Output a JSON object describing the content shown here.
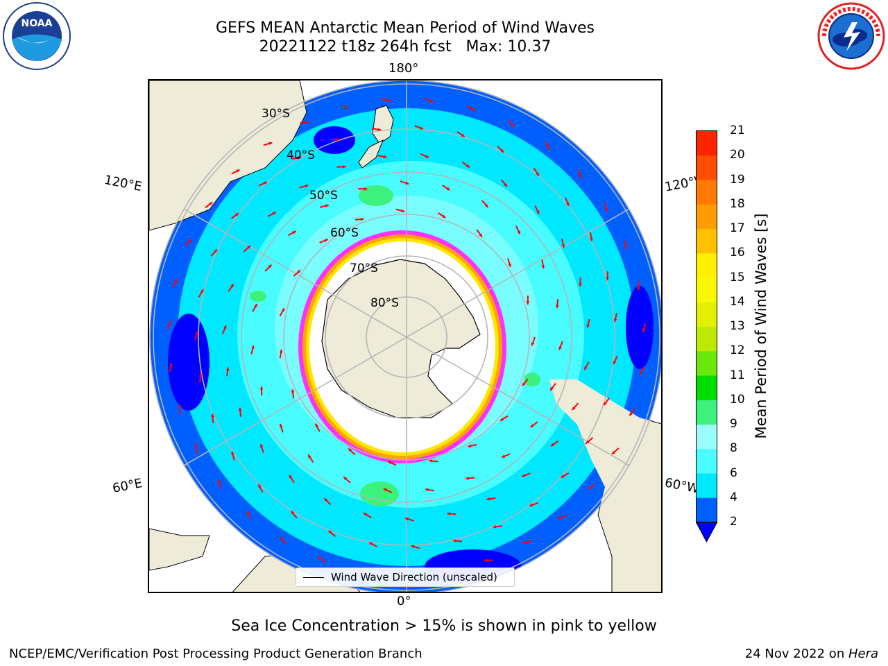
{
  "title_line1": "GEFS MEAN Antarctic Mean Period of Wind Waves",
  "title_line2": "20221122 t18z 264h fcst   Max: 10.37",
  "longitude_labels": {
    "top": "180°",
    "bottom": "0°",
    "upper_left": "120°E",
    "upper_right": "120°W",
    "lower_left": "60°E",
    "lower_right": "60°W"
  },
  "latitude_labels": [
    "30°S",
    "40°S",
    "50°S",
    "60°S",
    "70°S",
    "80°S"
  ],
  "legend": {
    "label": "Wind Wave Direction (unscaled)"
  },
  "colorbar": {
    "label": "Mean Period of Wind Waves [s]",
    "ticks": [
      "2",
      "4",
      "6",
      "8",
      "9",
      "10",
      "11",
      "12",
      "13",
      "14",
      "15",
      "16",
      "17",
      "18",
      "19",
      "20",
      "21"
    ],
    "colors": [
      "#0060ff",
      "#00e8ff",
      "#48fcff",
      "#9cfdfd",
      "#3cf27c",
      "#00de00",
      "#6ce80a",
      "#bde800",
      "#e0f000",
      "#f8f800",
      "#fff000",
      "#ffc000",
      "#ff9c00",
      "#ff7a00",
      "#ff4e00",
      "#ff2400"
    ],
    "under_color": "#0000ff"
  },
  "map_colors": {
    "land": "#efebd9",
    "ice_fill": "#ffffff",
    "ice_edge": [
      "#ff30ff",
      "#ffa500",
      "#ffe600"
    ],
    "arrow": "#ff0000",
    "grid": "#b5b5b5"
  },
  "map_summary": {
    "projection": "south polar stereographic",
    "dominant_period_range_s": [
      2,
      8
    ],
    "max_period_s": 10.37
  },
  "subtitle": "Sea Ice Concentration > 15% is shown in pink to yellow",
  "footer_left": "NCEP/EMC/Verification Post Processing Product Generation Branch",
  "footer_right_date": "24 Nov 2022 on ",
  "footer_right_host": "Hera",
  "logos": {
    "left": "noaa-logo",
    "right": "nws-logo"
  }
}
